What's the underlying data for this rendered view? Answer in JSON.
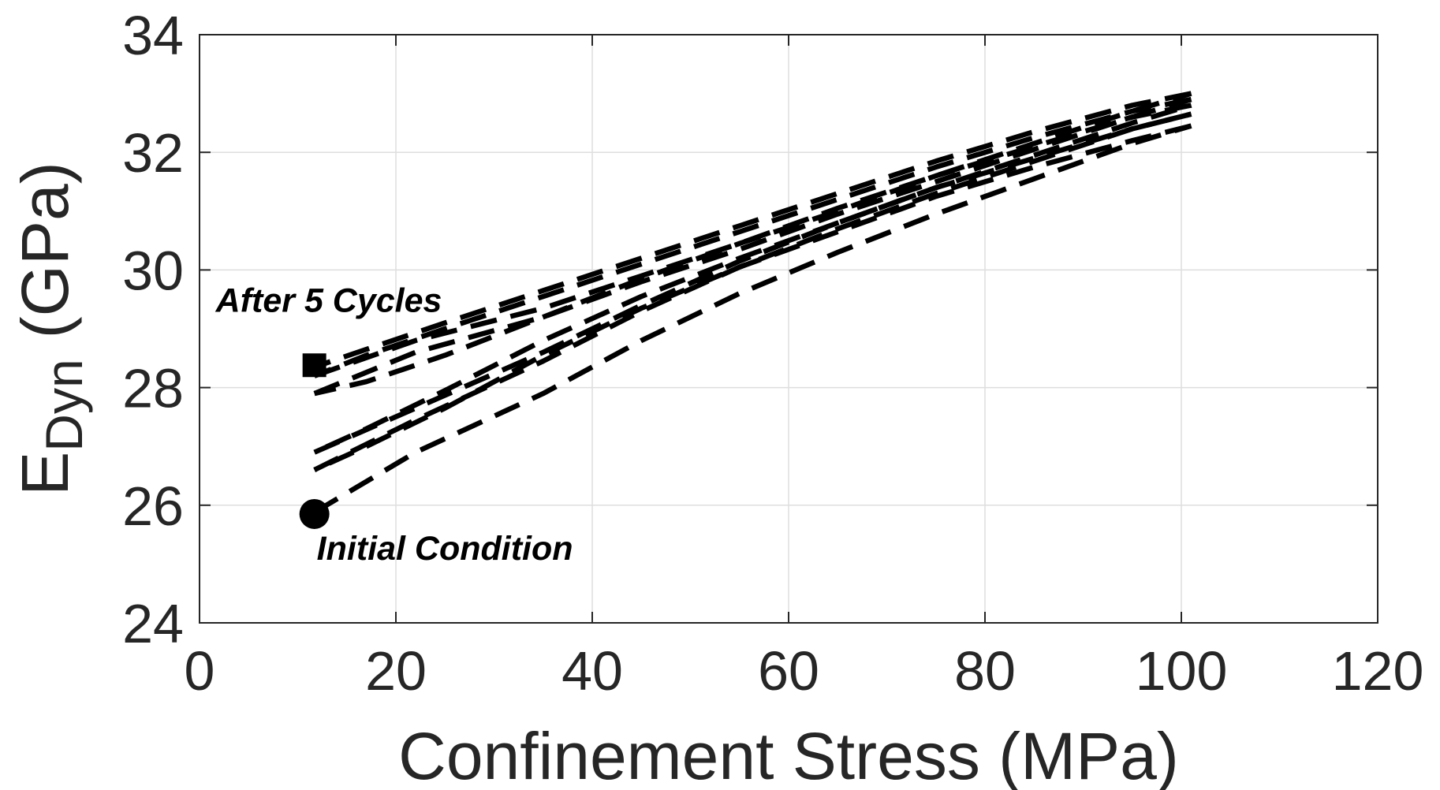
{
  "chart_data": {
    "type": "line",
    "xlabel": "Confinement Stress (MPa)",
    "ylabel": {
      "main": "E",
      "subscript": "Dyn",
      "unit": "(GPa)"
    },
    "xlim": [
      0,
      120
    ],
    "ylim": [
      24,
      34
    ],
    "xticks": [
      0,
      20,
      40,
      60,
      80,
      100,
      120
    ],
    "yticks": [
      24,
      26,
      28,
      30,
      32,
      34
    ],
    "xtick_labels": [
      "0",
      "20",
      "40",
      "60",
      "80",
      "100",
      "120"
    ],
    "ytick_labels": [
      "24",
      "26",
      "28",
      "30",
      "32",
      "34"
    ],
    "grid": true,
    "line_style": "dashed",
    "line_color": "#000000",
    "series": [
      {
        "x": [
          11.7,
          22,
          35,
          45,
          55,
          65,
          75,
          85,
          95,
          101
        ],
        "y": [
          25.88,
          26.9,
          27.9,
          28.8,
          29.6,
          30.3,
          30.95,
          31.55,
          32.15,
          32.45
        ]
      },
      {
        "x": [
          101,
          95,
          85,
          75,
          65,
          55,
          45,
          35,
          25,
          17,
          11.7
        ],
        "y": [
          32.45,
          32.2,
          31.75,
          31.25,
          30.65,
          30.05,
          29.35,
          28.55,
          27.65,
          27.0,
          26.6
        ]
      },
      {
        "x": [
          11.7,
          22,
          35,
          45,
          55,
          65,
          75,
          85,
          95,
          101
        ],
        "y": [
          26.6,
          27.45,
          28.45,
          29.3,
          30.05,
          30.7,
          31.3,
          31.85,
          32.4,
          32.65
        ]
      },
      {
        "x": [
          101,
          95,
          85,
          75,
          65,
          55,
          45,
          35,
          25,
          17,
          11.7
        ],
        "y": [
          32.65,
          32.4,
          31.9,
          31.4,
          30.8,
          30.2,
          29.55,
          28.8,
          27.95,
          27.3,
          26.9
        ]
      },
      {
        "x": [
          11.7,
          22,
          35,
          45,
          55,
          65,
          75,
          85,
          95,
          101
        ],
        "y": [
          26.9,
          27.65,
          28.6,
          29.4,
          30.15,
          30.8,
          31.4,
          31.95,
          32.5,
          32.8
        ]
      },
      {
        "x": [
          101,
          95,
          85,
          75,
          65,
          55,
          45,
          35,
          25,
          17,
          11.7
        ],
        "y": [
          32.8,
          32.6,
          32.1,
          31.6,
          31.0,
          30.45,
          29.85,
          29.2,
          28.55,
          28.1,
          27.9
        ]
      },
      {
        "x": [
          11.7,
          22,
          35,
          45,
          55,
          65,
          75,
          85,
          95,
          101
        ],
        "y": [
          27.9,
          28.6,
          29.2,
          29.8,
          30.35,
          30.95,
          31.5,
          32.05,
          32.6,
          32.9
        ]
      },
      {
        "x": [
          101,
          95,
          85,
          75,
          65,
          55,
          45,
          35,
          25,
          17,
          11.7
        ],
        "y": [
          32.9,
          32.7,
          32.25,
          31.75,
          31.2,
          30.65,
          30.1,
          29.55,
          29.0,
          28.55,
          28.2
        ]
      },
      {
        "x": [
          11.7,
          22,
          35,
          45,
          55,
          65,
          75,
          85,
          95,
          101
        ],
        "y": [
          28.2,
          28.8,
          29.35,
          29.9,
          30.45,
          31.05,
          31.6,
          32.15,
          32.7,
          33.0
        ]
      },
      {
        "x": [
          101,
          95,
          85,
          75,
          65,
          55,
          45,
          35,
          25,
          17,
          11.7
        ],
        "y": [
          33.0,
          32.8,
          32.35,
          31.85,
          31.3,
          30.75,
          30.2,
          29.65,
          29.1,
          28.65,
          28.35
        ]
      }
    ],
    "markers": [
      {
        "shape": "circle",
        "x": 11.7,
        "y": 25.85,
        "label": "Initial Condition"
      },
      {
        "shape": "square",
        "x": 11.7,
        "y": 28.38,
        "label": "After 5 Cycles"
      }
    ]
  }
}
